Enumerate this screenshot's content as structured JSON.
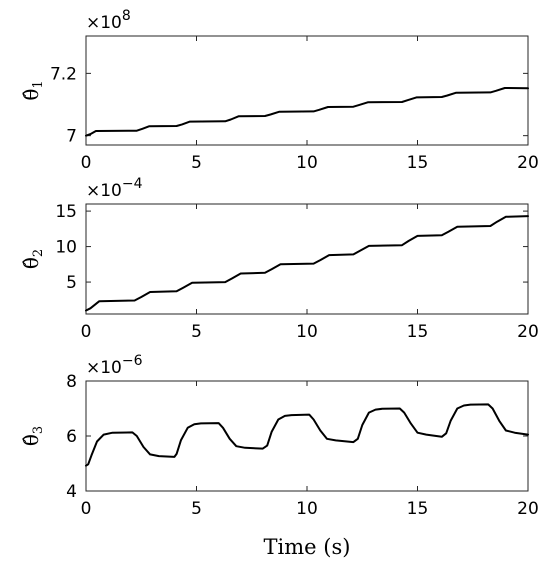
{
  "chart_data": [
    {
      "type": "line",
      "ylabel": "θ̂",
      "ylabel_sub": "1",
      "exponent": "×10",
      "exponent_power": "8",
      "xlim": [
        0,
        20
      ],
      "ylim": [
        6.97,
        7.32
      ],
      "xticks": [
        "0",
        "5",
        "10",
        "15",
        "20"
      ],
      "xtick_values": [
        0,
        5,
        10,
        15,
        20
      ],
      "yticks": [
        "7",
        "7.2"
      ],
      "ytick_values": [
        7.0,
        7.2
      ],
      "series": [
        {
          "x": [
            0,
            0.2,
            0.45,
            2.3,
            2.55,
            2.85,
            4.1,
            4.35,
            4.7,
            6.3,
            6.55,
            6.9,
            8.1,
            8.35,
            8.75,
            10.3,
            10.55,
            10.95,
            12.1,
            12.35,
            12.75,
            14.3,
            14.55,
            14.95,
            16.1,
            16.35,
            16.75,
            18.3,
            18.55,
            18.95,
            20
          ],
          "y": [
            7.0,
            7.005,
            7.015,
            7.016,
            7.022,
            7.03,
            7.031,
            7.036,
            7.045,
            7.046,
            7.052,
            7.062,
            7.063,
            7.068,
            7.077,
            7.078,
            7.083,
            7.092,
            7.093,
            7.098,
            7.107,
            7.108,
            7.114,
            7.123,
            7.124,
            7.129,
            7.138,
            7.139,
            7.144,
            7.153,
            7.152
          ]
        }
      ]
    },
    {
      "type": "line",
      "ylabel": "θ̂",
      "ylabel_sub": "2",
      "exponent": "×10",
      "exponent_power": "−4",
      "xlim": [
        0,
        20
      ],
      "ylim": [
        0.5,
        16
      ],
      "xticks": [
        "0",
        "5",
        "10",
        "15",
        "20"
      ],
      "xtick_values": [
        0,
        5,
        10,
        15,
        20
      ],
      "yticks": [
        "5",
        "10",
        "15"
      ],
      "ytick_values": [
        5,
        10,
        15
      ],
      "series": [
        {
          "x": [
            0,
            0.2,
            0.6,
            2.2,
            2.5,
            2.9,
            4.1,
            4.4,
            4.8,
            6.3,
            6.6,
            7.0,
            8.1,
            8.4,
            8.8,
            10.3,
            10.6,
            11.0,
            12.1,
            12.4,
            12.8,
            14.3,
            14.6,
            15.0,
            16.1,
            16.4,
            16.8,
            18.3,
            18.6,
            19.0,
            20
          ],
          "y": [
            1.0,
            1.3,
            2.3,
            2.4,
            2.9,
            3.6,
            3.7,
            4.2,
            4.9,
            5.0,
            5.5,
            6.2,
            6.3,
            6.8,
            7.5,
            7.6,
            8.1,
            8.8,
            8.9,
            9.4,
            10.1,
            10.2,
            10.8,
            11.5,
            11.6,
            12.1,
            12.8,
            12.9,
            13.5,
            14.2,
            14.3
          ]
        }
      ]
    },
    {
      "type": "line",
      "ylabel": "θ̂",
      "ylabel_sub": "3",
      "exponent": "×10",
      "exponent_power": "−6",
      "xlabel": "Time (s)",
      "xlim": [
        0,
        20
      ],
      "ylim": [
        4,
        8
      ],
      "xticks": [
        "0",
        "5",
        "10",
        "15",
        "20"
      ],
      "xtick_values": [
        0,
        5,
        10,
        15,
        20
      ],
      "yticks": [
        "4",
        "6",
        "8"
      ],
      "ytick_values": [
        4,
        6,
        8
      ],
      "series": [
        {
          "x": [
            0,
            0.1,
            0.25,
            0.5,
            0.8,
            1.2,
            2.1,
            2.3,
            2.6,
            2.9,
            3.3,
            4.0,
            4.1,
            4.3,
            4.6,
            4.9,
            5.2,
            6.0,
            6.2,
            6.5,
            6.8,
            7.2,
            8.0,
            8.2,
            8.4,
            8.7,
            9.0,
            9.3,
            10.1,
            10.3,
            10.6,
            10.9,
            11.3,
            12.1,
            12.3,
            12.5,
            12.8,
            13.1,
            13.4,
            14.2,
            14.4,
            14.7,
            15.0,
            15.4,
            16.1,
            16.3,
            16.5,
            16.8,
            17.1,
            17.4,
            18.2,
            18.4,
            18.7,
            19.0,
            19.4,
            20.0
          ],
          "y": [
            4.92,
            4.97,
            5.3,
            5.8,
            6.05,
            6.12,
            6.13,
            6.0,
            5.6,
            5.33,
            5.27,
            5.24,
            5.35,
            5.85,
            6.3,
            6.43,
            6.46,
            6.47,
            6.3,
            5.9,
            5.63,
            5.57,
            5.54,
            5.65,
            6.15,
            6.6,
            6.73,
            6.76,
            6.78,
            6.6,
            6.2,
            5.9,
            5.84,
            5.78,
            5.9,
            6.4,
            6.85,
            6.96,
            6.99,
            7.0,
            6.85,
            6.45,
            6.12,
            6.05,
            5.97,
            6.1,
            6.55,
            7.0,
            7.11,
            7.14,
            7.15,
            7.0,
            6.55,
            6.2,
            6.12,
            6.05
          ]
        }
      ]
    }
  ]
}
